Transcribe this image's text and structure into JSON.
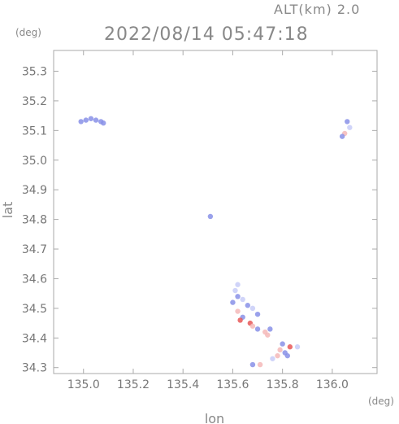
{
  "header": {
    "altitude_label": "ALT(km) 2.0",
    "timestamp": "2022/08/14 05:47:18",
    "y_unit": "(deg)",
    "x_unit": "(deg)"
  },
  "colors": {
    "frame": "#aaaaaa",
    "text": "#777777",
    "echo_blue": "#8890e8",
    "echo_light_blue": "#c8ccf8",
    "echo_red": "#e85858",
    "echo_pink": "#f4b8b8"
  },
  "chart_data": {
    "type": "scatter",
    "title": "2022/08/14 05:47:18",
    "xlabel": "lon",
    "ylabel": "lat",
    "xlim": [
      134.88,
      136.18
    ],
    "ylim": [
      34.28,
      35.37
    ],
    "xticks": [
      "135.0",
      "135.2",
      "135.4",
      "135.6",
      "135.8",
      "136.0"
    ],
    "yticks": [
      "34.3",
      "34.4",
      "34.5",
      "34.6",
      "34.7",
      "34.8",
      "34.9",
      "35.0",
      "35.1",
      "35.2",
      "35.3"
    ],
    "grid": false,
    "points": [
      {
        "lon": 134.99,
        "lat": 35.13,
        "c": "blue"
      },
      {
        "lon": 135.01,
        "lat": 35.135,
        "c": "blue"
      },
      {
        "lon": 135.03,
        "lat": 35.14,
        "c": "blue"
      },
      {
        "lon": 135.05,
        "lat": 35.135,
        "c": "blue"
      },
      {
        "lon": 135.07,
        "lat": 35.13,
        "c": "blue"
      },
      {
        "lon": 135.08,
        "lat": 35.125,
        "c": "blue"
      },
      {
        "lon": 136.06,
        "lat": 35.13,
        "c": "blue"
      },
      {
        "lon": 136.07,
        "lat": 35.11,
        "c": "light_blue"
      },
      {
        "lon": 136.05,
        "lat": 35.09,
        "c": "pink"
      },
      {
        "lon": 136.04,
        "lat": 35.08,
        "c": "blue"
      },
      {
        "lon": 135.51,
        "lat": 34.81,
        "c": "blue"
      },
      {
        "lon": 135.62,
        "lat": 34.58,
        "c": "light_blue"
      },
      {
        "lon": 135.61,
        "lat": 34.56,
        "c": "light_blue"
      },
      {
        "lon": 135.62,
        "lat": 34.54,
        "c": "blue"
      },
      {
        "lon": 135.64,
        "lat": 34.53,
        "c": "light_blue"
      },
      {
        "lon": 135.6,
        "lat": 34.52,
        "c": "blue"
      },
      {
        "lon": 135.66,
        "lat": 34.51,
        "c": "blue"
      },
      {
        "lon": 135.68,
        "lat": 34.5,
        "c": "light_blue"
      },
      {
        "lon": 135.62,
        "lat": 34.49,
        "c": "pink"
      },
      {
        "lon": 135.64,
        "lat": 34.47,
        "c": "blue"
      },
      {
        "lon": 135.63,
        "lat": 34.46,
        "c": "red"
      },
      {
        "lon": 135.7,
        "lat": 34.48,
        "c": "blue"
      },
      {
        "lon": 135.67,
        "lat": 34.45,
        "c": "red"
      },
      {
        "lon": 135.68,
        "lat": 34.44,
        "c": "pink"
      },
      {
        "lon": 135.7,
        "lat": 34.43,
        "c": "blue"
      },
      {
        "lon": 135.73,
        "lat": 34.42,
        "c": "pink"
      },
      {
        "lon": 135.75,
        "lat": 34.43,
        "c": "blue"
      },
      {
        "lon": 135.74,
        "lat": 34.41,
        "c": "pink"
      },
      {
        "lon": 135.8,
        "lat": 34.38,
        "c": "blue"
      },
      {
        "lon": 135.83,
        "lat": 34.37,
        "c": "red"
      },
      {
        "lon": 135.86,
        "lat": 34.37,
        "c": "light_blue"
      },
      {
        "lon": 135.79,
        "lat": 34.36,
        "c": "pink"
      },
      {
        "lon": 135.81,
        "lat": 34.35,
        "c": "blue"
      },
      {
        "lon": 135.78,
        "lat": 34.34,
        "c": "pink"
      },
      {
        "lon": 135.82,
        "lat": 34.34,
        "c": "blue"
      },
      {
        "lon": 135.76,
        "lat": 34.33,
        "c": "light_blue"
      },
      {
        "lon": 135.68,
        "lat": 34.31,
        "c": "blue"
      },
      {
        "lon": 135.71,
        "lat": 34.31,
        "c": "pink"
      }
    ]
  }
}
